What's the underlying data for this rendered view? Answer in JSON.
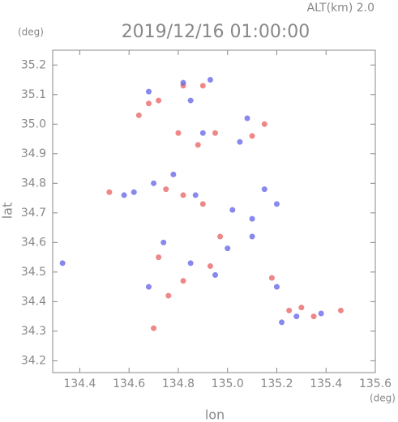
{
  "chart_data": {
    "type": "scatter",
    "annotation": "ALT(km) 2.0",
    "title": "2019/12/16 01:00:00",
    "x_label": "lon",
    "y_label": "lat",
    "x_unit": "(deg)",
    "y_unit": "(deg)",
    "xlim": [
      134.29,
      135.6
    ],
    "ylim": [
      34.16,
      35.25
    ],
    "xticks": [
      134.4,
      134.6,
      134.8,
      {
        "value": 135.0,
        "label": "135.0"
      },
      135.2,
      135.4,
      135.6
    ],
    "yticks": [
      34.2,
      34.3,
      34.4,
      34.5,
      34.6,
      34.7,
      34.8,
      34.9,
      {
        "value": 35.0,
        "label": "35.0"
      },
      35.1,
      35.2
    ],
    "series": [
      {
        "color": "#e86060",
        "x": [
          134.68,
          134.72,
          134.64,
          134.9,
          134.82,
          134.8,
          134.95,
          135.1,
          135.15,
          134.52,
          134.75,
          134.82,
          134.9,
          134.97,
          134.72,
          134.82,
          134.76,
          134.93,
          135.25,
          135.3,
          135.46,
          135.35,
          134.7,
          135.18,
          134.88
        ],
        "y": [
          35.07,
          35.08,
          35.03,
          35.13,
          35.13,
          34.97,
          34.97,
          34.96,
          35.0,
          34.77,
          34.78,
          34.76,
          34.73,
          34.62,
          34.55,
          34.47,
          34.42,
          34.52,
          34.37,
          34.38,
          34.37,
          34.35,
          34.31,
          34.48,
          34.93
        ]
      },
      {
        "color": "#6060e8",
        "x": [
          134.93,
          134.82,
          134.68,
          134.85,
          135.08,
          134.9,
          135.05,
          134.7,
          134.78,
          134.62,
          134.58,
          134.87,
          135.02,
          135.1,
          135.2,
          135.15,
          134.33,
          134.74,
          135.0,
          135.1,
          134.85,
          134.68,
          135.22,
          135.28,
          135.38,
          135.2,
          134.95
        ],
        "y": [
          35.15,
          35.14,
          35.11,
          35.08,
          35.02,
          34.97,
          34.94,
          34.8,
          34.83,
          34.77,
          34.76,
          34.76,
          34.71,
          34.68,
          34.73,
          34.78,
          34.53,
          34.6,
          34.58,
          34.62,
          34.53,
          34.45,
          34.33,
          34.35,
          34.36,
          34.45,
          34.49
        ]
      }
    ]
  }
}
